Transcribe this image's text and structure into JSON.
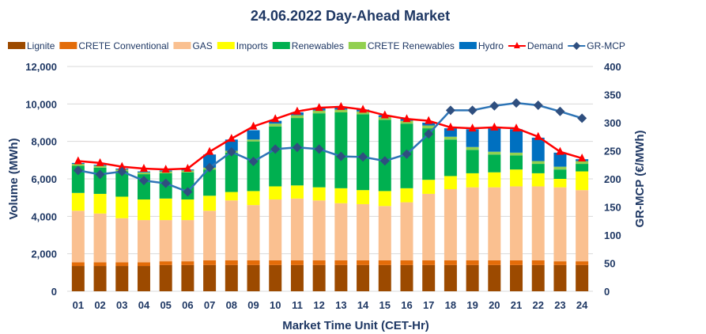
{
  "chart_data": {
    "type": "bar",
    "title": "24.06.2022  Day-Ahead Market",
    "xlabel": "Market Time Unit (CET-Hr)",
    "ylabel": "Volume (MWh)",
    "y2label": "GR-MCP (€/MWh)",
    "ylim": [
      0,
      12000
    ],
    "y2lim": [
      0,
      400
    ],
    "yticks": [
      "0",
      "2,000",
      "4,000",
      "6,000",
      "8,000",
      "10,000",
      "12,000"
    ],
    "y2ticks": [
      "0",
      "50",
      "100",
      "150",
      "200",
      "250",
      "300",
      "350",
      "400"
    ],
    "categories": [
      "01",
      "02",
      "03",
      "04",
      "05",
      "06",
      "07",
      "08",
      "09",
      "10",
      "11",
      "12",
      "13",
      "14",
      "15",
      "16",
      "17",
      "18",
      "19",
      "20",
      "21",
      "22",
      "23",
      "24"
    ],
    "legend_position": "top",
    "grid": true,
    "series": [
      {
        "name": "Lignite",
        "kind": "bar",
        "color": "#9C4A00",
        "values": [
          1350,
          1350,
          1350,
          1350,
          1400,
          1400,
          1400,
          1400,
          1400,
          1400,
          1400,
          1400,
          1400,
          1400,
          1400,
          1400,
          1400,
          1400,
          1400,
          1400,
          1400,
          1400,
          1400,
          1400
        ]
      },
      {
        "name": "CRETE Conventional",
        "kind": "bar",
        "color": "#E36C09",
        "values": [
          200,
          200,
          200,
          200,
          200,
          200,
          250,
          250,
          250,
          250,
          250,
          250,
          250,
          250,
          250,
          250,
          250,
          250,
          250,
          250,
          250,
          250,
          200,
          200
        ]
      },
      {
        "name": "GAS",
        "kind": "bar",
        "color": "#FAC090",
        "values": [
          2750,
          2600,
          2350,
          2250,
          2200,
          2200,
          2650,
          3200,
          2950,
          3250,
          3300,
          3200,
          3050,
          3000,
          2900,
          3100,
          3550,
          3800,
          3900,
          3900,
          3950,
          3950,
          3950,
          3800
        ]
      },
      {
        "name": "Imports",
        "kind": "bar",
        "color": "#FFFF00",
        "values": [
          950,
          1050,
          1150,
          1100,
          1150,
          1100,
          800,
          450,
          750,
          700,
          700,
          700,
          800,
          750,
          800,
          750,
          750,
          700,
          750,
          800,
          900,
          700,
          450,
          1000
        ]
      },
      {
        "name": "Renewables",
        "kind": "bar",
        "color": "#00B050",
        "values": [
          1450,
          1400,
          1350,
          1350,
          1350,
          1450,
          1400,
          2100,
          2650,
          3200,
          3600,
          3950,
          4050,
          4050,
          3800,
          3450,
          2750,
          1950,
          1250,
          950,
          750,
          500,
          500,
          400
        ]
      },
      {
        "name": "CRETE Renewables",
        "kind": "bar",
        "color": "#92D050",
        "values": [
          100,
          100,
          100,
          100,
          100,
          100,
          100,
          100,
          100,
          150,
          150,
          150,
          150,
          150,
          150,
          150,
          150,
          150,
          150,
          150,
          150,
          150,
          150,
          150
        ]
      },
      {
        "name": "Hydro",
        "kind": "bar",
        "color": "#0070C0",
        "values": [
          50,
          50,
          50,
          50,
          50,
          50,
          700,
          600,
          500,
          150,
          150,
          150,
          100,
          100,
          100,
          100,
          150,
          450,
          950,
          1250,
          1250,
          1250,
          750,
          100
        ]
      },
      {
        "name": "Demand",
        "kind": "line",
        "color": "#FF0000",
        "marker": "triangle",
        "axis": "left",
        "values": [
          6950,
          6850,
          6650,
          6550,
          6500,
          6550,
          7450,
          8150,
          8800,
          9200,
          9600,
          9800,
          9850,
          9700,
          9400,
          9200,
          9100,
          8750,
          8700,
          8750,
          8700,
          8250,
          7450,
          7100
        ]
      },
      {
        "name": "GR-MCP",
        "kind": "line",
        "color": "#2E75B6",
        "markerColor": "#2F4F7F",
        "marker": "diamond",
        "axis": "right",
        "values": [
          215,
          208,
          213,
          197,
          192,
          177,
          220,
          248,
          231,
          253,
          256,
          253,
          240,
          239,
          232,
          244,
          280,
          322,
          322,
          330,
          335,
          331,
          320,
          308
        ]
      }
    ]
  }
}
